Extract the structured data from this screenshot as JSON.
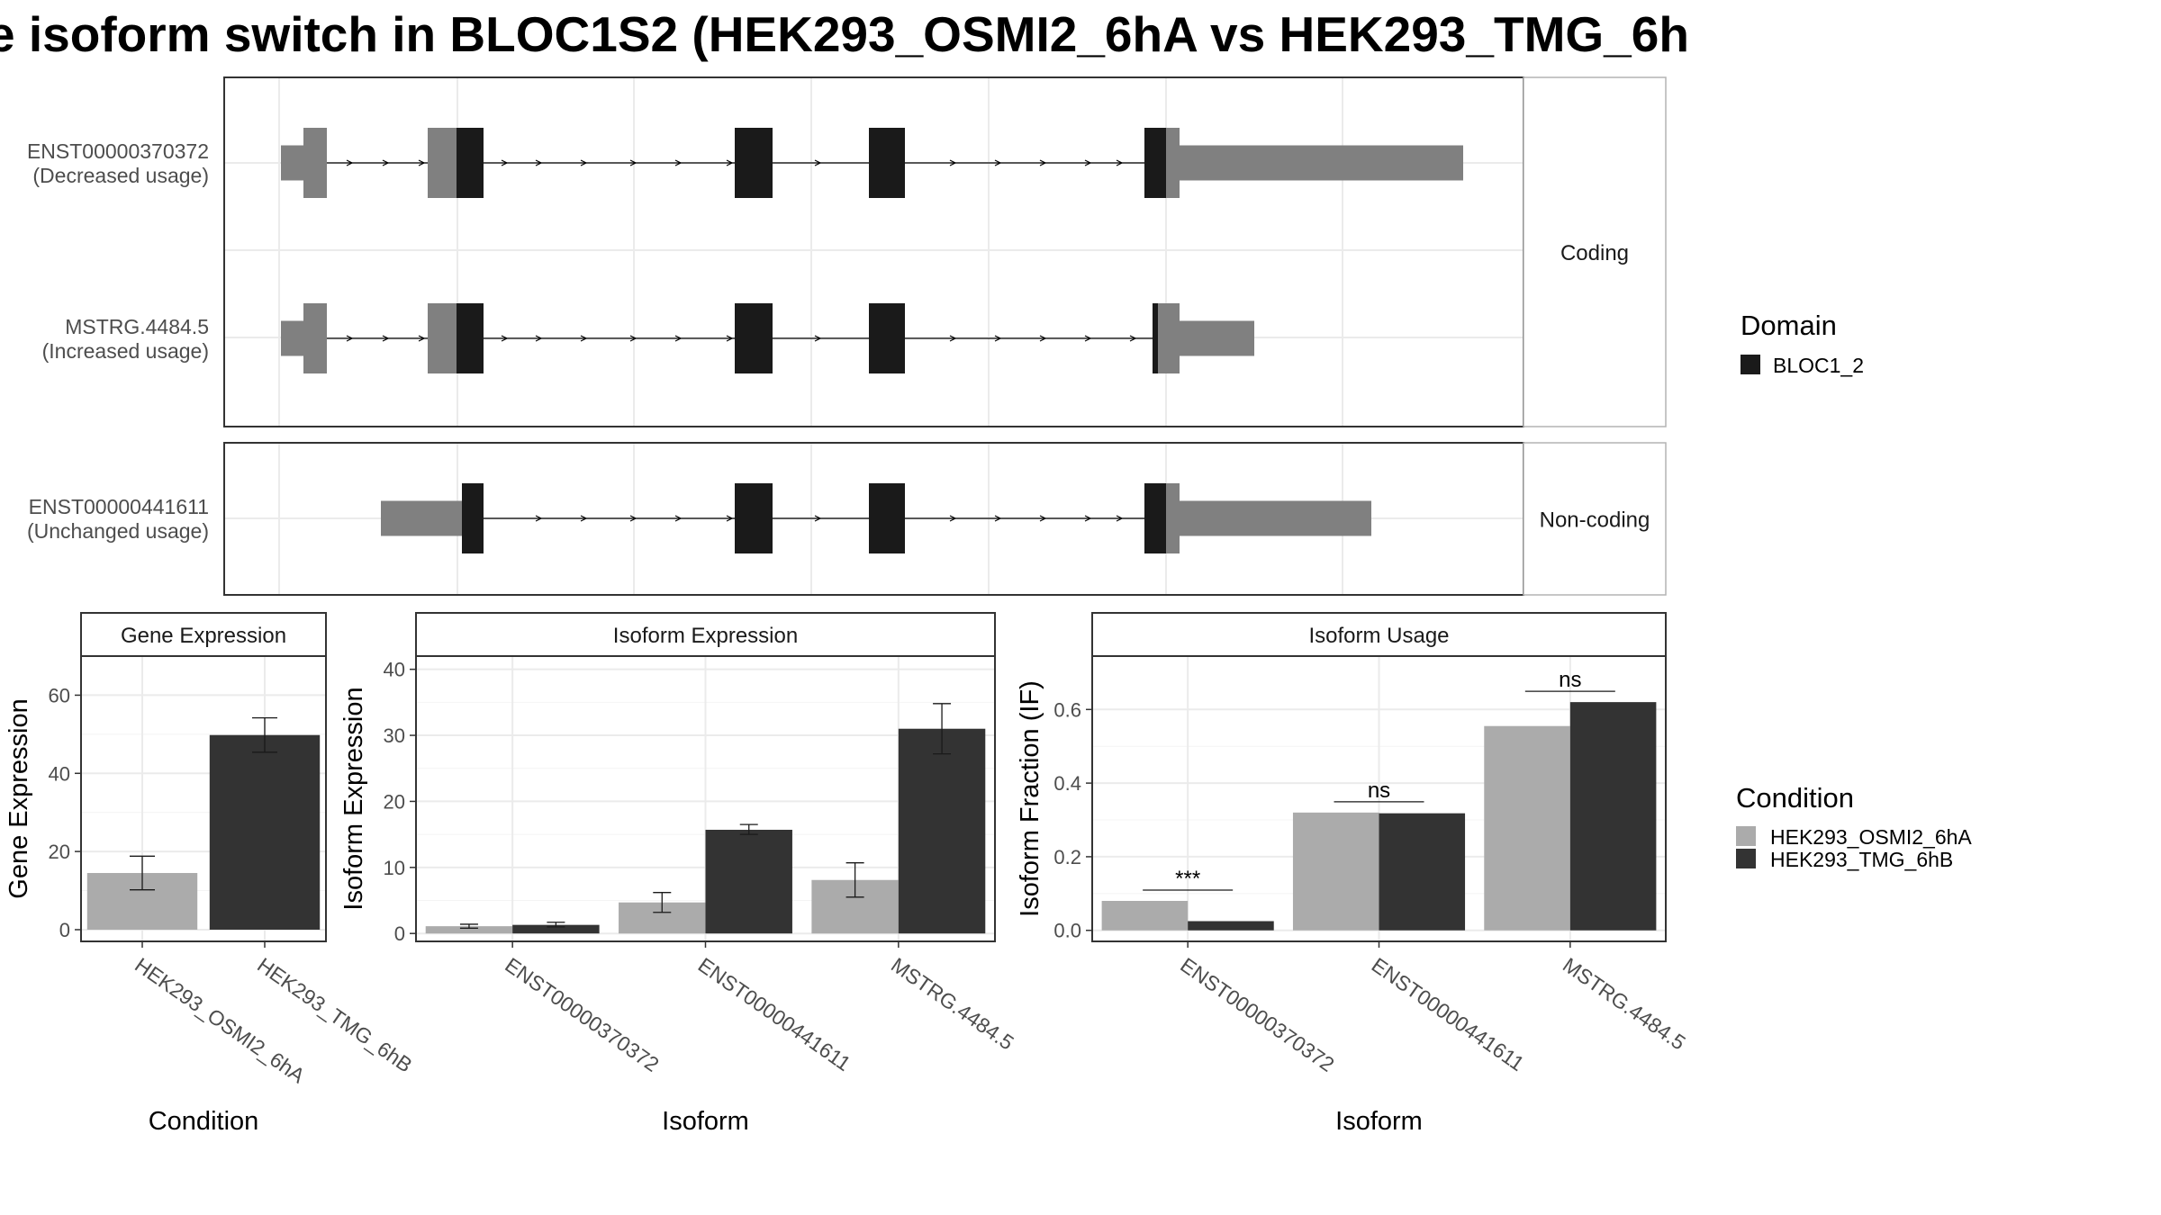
{
  "title": "e isoform switch in BLOC1S2 (HEK293_OSMI2_6hA vs HEK293_TMG_6h",
  "structure": {
    "facets": [
      "Coding",
      "Non-coding"
    ],
    "isoforms": [
      {
        "id": "ENST00000370372",
        "usage": "(Decreased usage)"
      },
      {
        "id": "MSTRG.4484.5",
        "usage": "(Increased usage)"
      },
      {
        "id": "ENST00000441611",
        "usage": "(Unchanged usage)"
      }
    ],
    "domain_legend": {
      "title": "Domain",
      "items": [
        {
          "name": "BLOC1_2",
          "color": "#1a1a1a"
        }
      ]
    }
  },
  "colors": {
    "utr": "#808080",
    "domain": "#1a1a1a",
    "osmi": "#ababab",
    "tmg": "#333333",
    "grid": "#ebebeb",
    "panel_border": "#333333"
  },
  "chart_data": [
    {
      "type": "bar",
      "title": "Gene Expression",
      "xlabel": "Condition",
      "ylabel": "Gene Expression",
      "ylim": [
        -3,
        70
      ],
      "yticks": [
        0,
        20,
        40,
        60
      ],
      "categories": [
        "HEK293_OSMI2_6hA",
        "HEK293_TMG_6hB"
      ],
      "values": [
        14.5,
        49.8
      ],
      "errors": [
        [
          10.2,
          18.8
        ],
        [
          45.4,
          54.2
        ]
      ]
    },
    {
      "type": "bar",
      "title": "Isoform Expression",
      "xlabel": "Isoform",
      "ylabel": "Isoform Expression",
      "ylim": [
        -1.2,
        42
      ],
      "yticks": [
        0,
        10,
        20,
        30,
        40
      ],
      "categories": [
        "ENST00000370372",
        "ENST00000441611",
        "MSTRG.4484.5"
      ],
      "series": [
        {
          "name": "HEK293_OSMI2_6hA",
          "values": [
            1.1,
            4.7,
            8.1
          ],
          "errors": [
            [
              0.8,
              1.4
            ],
            [
              3.2,
              6.2
            ],
            [
              5.5,
              10.7
            ]
          ]
        },
        {
          "name": "HEK293_TMG_6hB",
          "values": [
            1.3,
            15.7,
            31.0
          ],
          "errors": [
            [
              1.0,
              1.7
            ],
            [
              15.0,
              16.5
            ],
            [
              27.2,
              34.8
            ]
          ]
        }
      ]
    },
    {
      "type": "bar",
      "title": "Isoform Usage",
      "xlabel": "Isoform",
      "ylabel": "Isoform Fraction (IF)",
      "ylim": [
        -0.03,
        0.745
      ],
      "yticks": [
        "0.0",
        "0.2",
        "0.4",
        "0.6"
      ],
      "categories": [
        "ENST00000370372",
        "ENST00000441611",
        "MSTRG.4484.5"
      ],
      "series": [
        {
          "name": "HEK293_OSMI2_6hA",
          "values": [
            0.08,
            0.32,
            0.555
          ]
        },
        {
          "name": "HEK293_TMG_6hB",
          "values": [
            0.025,
            0.318,
            0.62
          ]
        }
      ],
      "significance": [
        "***",
        "ns",
        "ns"
      ]
    }
  ],
  "condition_legend": {
    "title": "Condition",
    "items": [
      "HEK293_OSMI2_6hA",
      "HEK293_TMG_6hB"
    ]
  }
}
